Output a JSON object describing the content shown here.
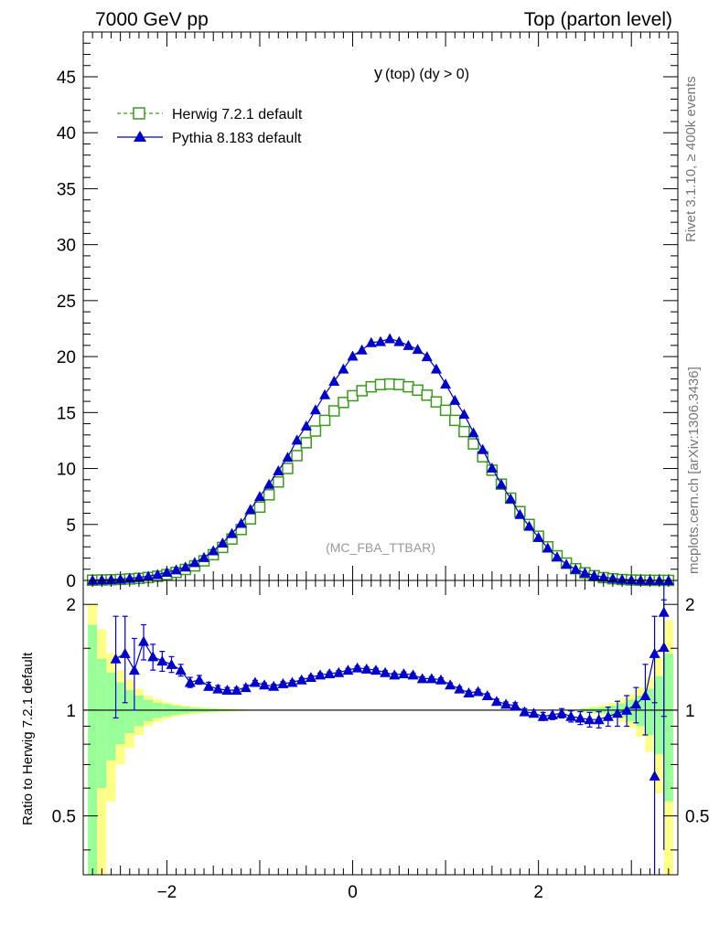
{
  "header": {
    "left": "7000 GeV pp",
    "right": "Top (parton level)"
  },
  "side_labels": {
    "rivet": "Rivet 3.1.10, ≥ 400k events",
    "mcplots": "mcplots.cern.ch [arXiv:1306.3436]"
  },
  "colors": {
    "herwig": "#3a9a1e",
    "pythia": "#0000cc",
    "band_inner": "#99ff99",
    "band_outer": "#ffff88"
  },
  "chart_data": [
    {
      "type": "line",
      "title": "y (top) (dy > 0)",
      "title_main": "y",
      "title_sub": "(top) (dy > 0)",
      "annotation": "(MC_FBA_TTBAR)",
      "xlabel": "",
      "ylabel": "",
      "xlim": [
        -2.9,
        3.5
      ],
      "ylim": [
        0,
        49
      ],
      "yticks": [
        0,
        5,
        10,
        15,
        20,
        25,
        30,
        35,
        40,
        45
      ],
      "ytick_labels": [
        "0",
        "5",
        "10",
        "15",
        "20",
        "25",
        "30",
        "35",
        "40",
        "45"
      ],
      "legend_position": "top-left",
      "series": [
        {
          "name": "Herwig 7.2.1 default",
          "marker": "open-square",
          "style": "dashed",
          "x": [
            -2.8,
            -2.7,
            -2.6,
            -2.5,
            -2.4,
            -2.3,
            -2.2,
            -2.1,
            -2.0,
            -1.9,
            -1.8,
            -1.7,
            -1.6,
            -1.5,
            -1.4,
            -1.3,
            -1.2,
            -1.1,
            -1.0,
            -0.9,
            -0.8,
            -0.7,
            -0.6,
            -0.5,
            -0.4,
            -0.3,
            -0.2,
            -0.1,
            0.0,
            0.1,
            0.2,
            0.3,
            0.4,
            0.5,
            0.6,
            0.7,
            0.8,
            0.9,
            1.0,
            1.1,
            1.2,
            1.3,
            1.4,
            1.5,
            1.6,
            1.7,
            1.8,
            1.9,
            2.0,
            2.1,
            2.2,
            2.3,
            2.4,
            2.5,
            2.6,
            2.7,
            2.8,
            2.9,
            3.0,
            3.1,
            3.2,
            3.3,
            3.4
          ],
          "values": [
            0.02,
            0.04,
            0.06,
            0.09,
            0.13,
            0.18,
            0.26,
            0.37,
            0.52,
            0.72,
            0.98,
            1.3,
            1.75,
            2.3,
            2.95,
            3.7,
            4.55,
            5.5,
            6.55,
            7.65,
            8.8,
            10.0,
            11.15,
            12.3,
            13.35,
            14.3,
            15.15,
            15.9,
            16.5,
            16.95,
            17.3,
            17.5,
            17.55,
            17.5,
            17.3,
            17.0,
            16.55,
            15.95,
            15.2,
            14.3,
            13.3,
            12.2,
            11.05,
            9.85,
            8.6,
            7.35,
            6.15,
            5.0,
            3.95,
            3.0,
            2.2,
            1.55,
            1.05,
            0.68,
            0.42,
            0.25,
            0.15,
            0.08,
            0.04,
            0.02,
            0.01,
            0.005,
            0.003
          ]
        },
        {
          "name": "Pythia 8.183 default",
          "marker": "filled-triangle",
          "style": "solid",
          "x": [
            -2.8,
            -2.7,
            -2.6,
            -2.5,
            -2.4,
            -2.3,
            -2.2,
            -2.1,
            -2.0,
            -1.9,
            -1.8,
            -1.7,
            -1.6,
            -1.5,
            -1.4,
            -1.3,
            -1.2,
            -1.1,
            -1.0,
            -0.9,
            -0.8,
            -0.7,
            -0.6,
            -0.5,
            -0.4,
            -0.3,
            -0.2,
            -0.1,
            0.0,
            0.1,
            0.2,
            0.3,
            0.4,
            0.5,
            0.6,
            0.7,
            0.8,
            0.9,
            1.0,
            1.1,
            1.2,
            1.3,
            1.4,
            1.5,
            1.6,
            1.7,
            1.8,
            1.9,
            2.0,
            2.1,
            2.2,
            2.3,
            2.4,
            2.5,
            2.6,
            2.7,
            2.8,
            2.9,
            3.0,
            3.1,
            3.2,
            3.3,
            3.4
          ],
          "values": [
            0.03,
            0.05,
            0.08,
            0.12,
            0.19,
            0.27,
            0.38,
            0.53,
            0.74,
            0.95,
            1.2,
            1.6,
            2.05,
            2.65,
            3.35,
            4.2,
            5.1,
            6.35,
            7.5,
            8.6,
            9.8,
            11.0,
            12.55,
            13.8,
            15.25,
            16.6,
            17.8,
            18.9,
            20.05,
            20.6,
            21.25,
            21.35,
            21.6,
            21.35,
            21.0,
            20.65,
            20.0,
            18.9,
            17.55,
            16.1,
            14.85,
            13.2,
            11.7,
            10.05,
            8.6,
            7.3,
            5.9,
            4.85,
            3.85,
            2.9,
            2.1,
            1.45,
            1.0,
            0.68,
            0.45,
            0.3,
            0.18,
            0.1,
            0.05,
            0.03,
            0.015,
            0.008,
            0.005
          ]
        }
      ]
    },
    {
      "type": "line",
      "title": "",
      "xlabel": "",
      "ylabel": "Ratio to Herwig 7.2.1 default",
      "xlim": [
        -2.9,
        3.5
      ],
      "ylim": [
        0.34,
        2.34
      ],
      "xticks": [
        -2,
        0,
        2
      ],
      "xtick_labels": [
        "−2",
        "0",
        "2"
      ],
      "yticks": [
        0.5,
        1,
        2
      ],
      "ytick_labels": [
        "0.5",
        "1",
        "2"
      ],
      "reference_line": 1,
      "bands": {
        "x_edges": [
          -2.85,
          -2.75,
          -2.65,
          -2.55,
          -2.45,
          -2.35,
          -2.25,
          -2.15,
          -2.05,
          -1.95,
          -1.85,
          -1.75,
          -1.65,
          -1.55,
          -1.45,
          -1.35,
          -1.25,
          -1.15,
          -1.05,
          2.45,
          2.55,
          2.65,
          2.75,
          2.85,
          2.95,
          3.05,
          3.15,
          3.25,
          3.35,
          3.45
        ],
        "inner_rel_err": [
          0.75,
          0.4,
          0.28,
          0.2,
          0.14,
          0.1,
          0.07,
          0.05,
          0.04,
          0.03,
          0.022,
          0.016,
          0.012,
          0.009,
          0.007,
          0.005,
          0.004,
          0.003,
          0.002,
          0.01,
          0.015,
          0.02,
          0.03,
          0.045,
          0.07,
          0.1,
          0.15,
          0.25,
          0.45
        ],
        "outer_rel_err": [
          1.0,
          0.7,
          0.45,
          0.3,
          0.22,
          0.15,
          0.1,
          0.075,
          0.055,
          0.042,
          0.032,
          0.024,
          0.018,
          0.014,
          0.01,
          0.008,
          0.006,
          0.004,
          0.003,
          0.016,
          0.025,
          0.035,
          0.05,
          0.075,
          0.11,
          0.16,
          0.24,
          0.42,
          0.8
        ]
      },
      "series": [
        {
          "name": "Pythia 8.183 default",
          "marker": "filled-triangle",
          "x": [
            -2.55,
            -2.45,
            -2.35,
            -2.25,
            -2.15,
            -2.05,
            -1.95,
            -1.85,
            -1.75,
            -1.65,
            -1.55,
            -1.45,
            -1.35,
            -1.25,
            -1.15,
            -1.05,
            -0.95,
            -0.85,
            -0.75,
            -0.65,
            -0.55,
            -0.45,
            -0.35,
            -0.25,
            -0.15,
            -0.05,
            0.05,
            0.15,
            0.25,
            0.35,
            0.45,
            0.55,
            0.65,
            0.75,
            0.85,
            0.95,
            1.05,
            1.15,
            1.25,
            1.35,
            1.45,
            1.55,
            1.65,
            1.75,
            1.85,
            1.95,
            2.05,
            2.15,
            2.25,
            2.35,
            2.45,
            2.55,
            2.65,
            2.75,
            2.85,
            2.95,
            3.05,
            3.15,
            3.25,
            3.35
          ],
          "values": [
            1.4,
            1.45,
            1.3,
            1.57,
            1.42,
            1.38,
            1.35,
            1.3,
            1.2,
            1.22,
            1.17,
            1.15,
            1.14,
            1.14,
            1.16,
            1.2,
            1.18,
            1.17,
            1.19,
            1.2,
            1.22,
            1.24,
            1.26,
            1.27,
            1.28,
            1.3,
            1.32,
            1.31,
            1.3,
            1.28,
            1.26,
            1.27,
            1.26,
            1.23,
            1.23,
            1.22,
            1.18,
            1.15,
            1.12,
            1.13,
            1.1,
            1.06,
            1.04,
            1.03,
            0.99,
            0.98,
            0.96,
            0.97,
            0.98,
            0.96,
            0.95,
            0.94,
            0.94,
            0.96,
            0.98,
            1.0,
            1.04,
            1.1,
            1.45,
            1.51
          ],
          "err": [
            0.45,
            0.4,
            0.3,
            0.18,
            0.12,
            0.09,
            0.07,
            0.05,
            0.04,
            0.035,
            0.03,
            0.025,
            0.02,
            0.02,
            0.02,
            0.015,
            0.015,
            0.015,
            0.015,
            0.015,
            0.015,
            0.015,
            0.015,
            0.015,
            0.015,
            0.015,
            0.015,
            0.015,
            0.015,
            0.015,
            0.015,
            0.015,
            0.015,
            0.015,
            0.015,
            0.015,
            0.015,
            0.015,
            0.015,
            0.015,
            0.015,
            0.015,
            0.015,
            0.02,
            0.02,
            0.02,
            0.025,
            0.03,
            0.03,
            0.035,
            0.04,
            0.045,
            0.05,
            0.06,
            0.08,
            0.1,
            0.12,
            0.25,
            0.4,
            0.55
          ]
        }
      ],
      "extra_points": {
        "x": [
          3.25,
          3.35
        ],
        "values": [
          0.65,
          1.9
        ],
        "err_lo": [
          0.4,
          1.5
        ],
        "err_hi": [
          0.55,
          0.4
        ]
      }
    }
  ]
}
